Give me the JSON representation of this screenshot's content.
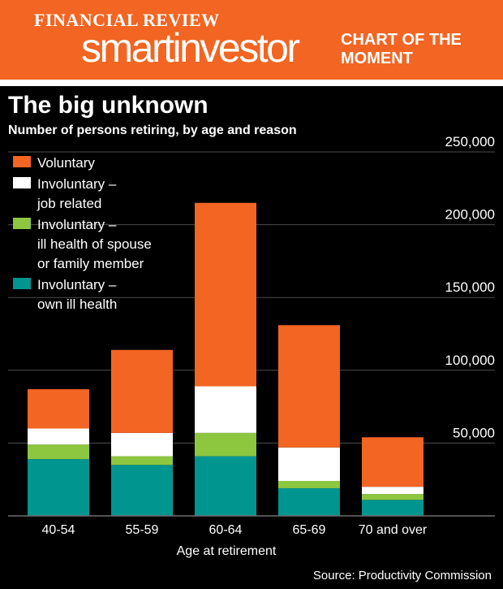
{
  "header": {
    "publication": "FINANCIAL REVIEW",
    "brand": "smartinvestor",
    "section": "CHART OF THE MOMENT"
  },
  "colors": {
    "accent": "#f26522",
    "voluntary": "#f26522",
    "job_related": "#ffffff",
    "spouse_ill_health": "#8dc63f",
    "own_ill_health": "#00958f",
    "background": "#000000"
  },
  "chart_data": {
    "type": "bar",
    "stacked": true,
    "title": "The big unknown",
    "subtitle": "Number of persons retiring, by age and reason",
    "xlabel": "Age at retirement",
    "ylabel": "",
    "ylim": [
      0,
      250000
    ],
    "yticks": [
      50000,
      100000,
      150000,
      200000,
      250000
    ],
    "ytick_labels": [
      "50,000",
      "100,000",
      "150,000",
      "200,000",
      "250,000"
    ],
    "grid": true,
    "legend_position": "top-left",
    "categories": [
      "40-54",
      "55-59",
      "60-64",
      "65-69",
      "70 and over"
    ],
    "series": [
      {
        "name": "Involuntary – own ill health",
        "legend_lines": [
          "Involuntary –",
          "own ill health"
        ],
        "color": "#00958f",
        "values": [
          39000,
          35000,
          41000,
          19000,
          11000
        ]
      },
      {
        "name": "Involuntary – ill health of spouse or family member",
        "legend_lines": [
          "Involuntary –",
          "ill health of spouse",
          "or family member"
        ],
        "color": "#8dc63f",
        "values": [
          10000,
          6000,
          16000,
          5000,
          4000
        ]
      },
      {
        "name": "Involuntary – job related",
        "legend_lines": [
          "Involuntary –",
          "job related"
        ],
        "color": "#ffffff",
        "values": [
          11000,
          16000,
          32000,
          23000,
          5000
        ]
      },
      {
        "name": "Voluntary",
        "legend_lines": [
          "Voluntary"
        ],
        "color": "#f26522",
        "values": [
          27000,
          57000,
          126000,
          84000,
          34000
        ]
      }
    ]
  },
  "footer": {
    "source": "Source: Productivity Commission"
  }
}
